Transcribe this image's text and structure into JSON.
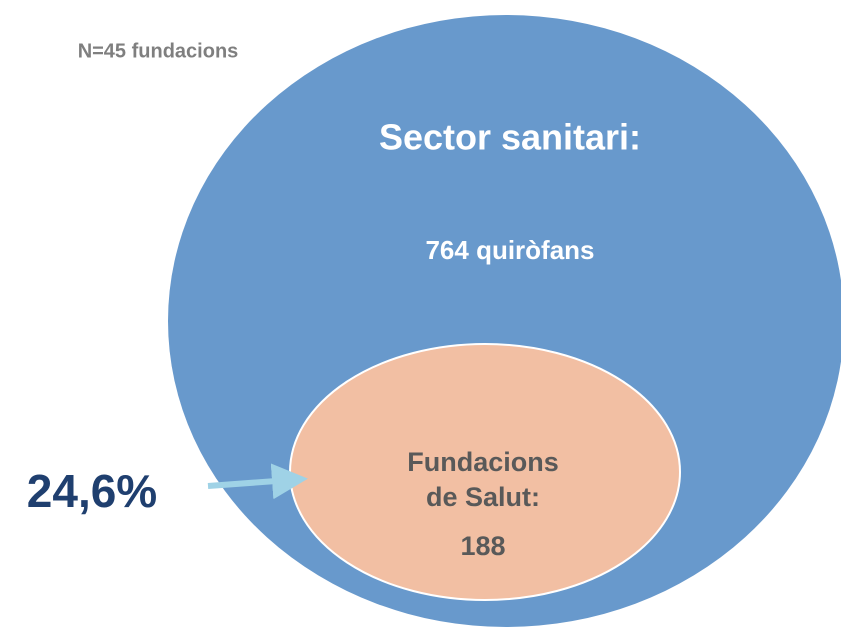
{
  "note": "N=45 fundacions",
  "outer": {
    "title": "Sector sanitari:",
    "label": "764 quiròfans"
  },
  "inner": {
    "lines": [
      "Fundacions",
      "de Salut:"
    ],
    "value": "188"
  },
  "share": "24,6%"
}
